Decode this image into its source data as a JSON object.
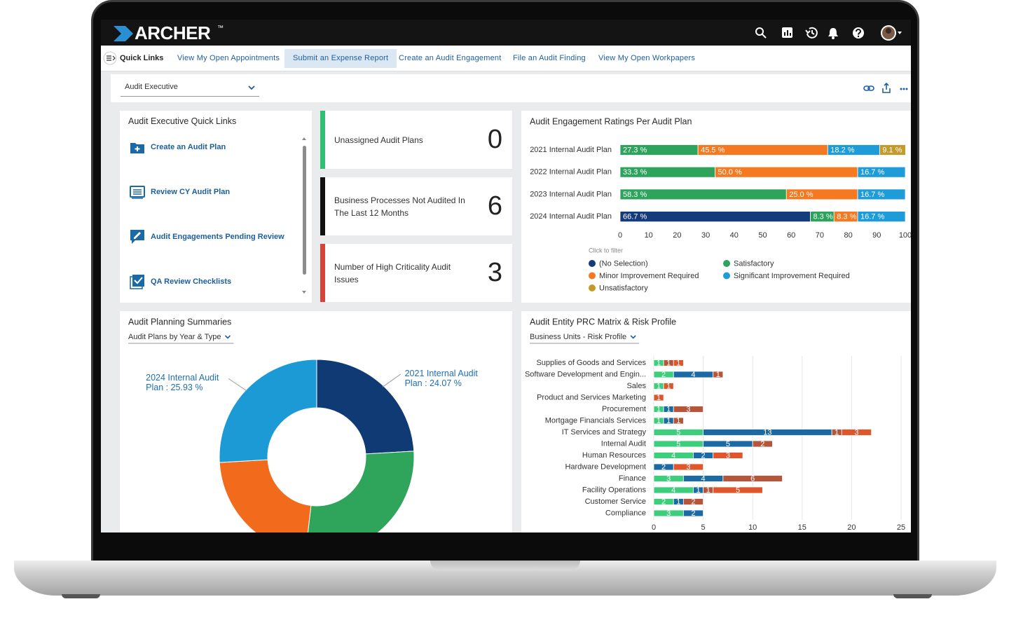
{
  "header": {
    "logo": "ARCHER",
    "trademark": "™"
  },
  "quick_links": {
    "title": "Quick Links",
    "links": [
      "View My Open Appointments",
      "Submit an Expense Report",
      "Create an Audit Engagement",
      "File an Audit Finding",
      "View My Open Workpapers"
    ],
    "active": 1
  },
  "workspace": {
    "selector": "Audit Executive"
  },
  "quick_links_panel": {
    "title": "Audit Executive Quick Links",
    "items": [
      "Create an Audit Plan",
      "Review CY Audit Plan",
      "Audit Engagements Pending Review",
      "QA Review Checklists"
    ]
  },
  "kpis": [
    {
      "label": "Unassigned Audit Plans",
      "value": 0,
      "color": "#2fbf71"
    },
    {
      "label": "Business Processes Not Audited In The Last 12 Months",
      "value": 6,
      "color": "#111111"
    },
    {
      "label": "Number of High Criticality Audit Issues",
      "value": 3,
      "color": "#d9443a"
    }
  ],
  "chart_data": [
    {
      "type": "bar",
      "orientation": "horizontal",
      "stacked": true,
      "title": "Audit Engagement Ratings Per Audit Plan",
      "categories": [
        "2021 Internal Audit Plan",
        "2022 Internal Audit Plan",
        "2023 Internal Audit Plan",
        "2024 Internal Audit Plan"
      ],
      "series": [
        {
          "name": "(No Selection)",
          "color": "#163b7a",
          "values": [
            null,
            null,
            null,
            66.7
          ],
          "value_labels": [
            null,
            null,
            null,
            "66.7 %"
          ]
        },
        {
          "name": "Satisfactory",
          "color": "#2da35b",
          "values": [
            27.3,
            33.3,
            58.3,
            8.3
          ],
          "value_labels": [
            "27.3 %",
            "33.3 %",
            "58.3 %",
            "8.3 %"
          ]
        },
        {
          "name": "Minor Improvement Required",
          "color": "#f47920",
          "values": [
            45.5,
            50.0,
            25.0,
            8.3
          ],
          "value_labels": [
            "45.5 %",
            "50.0 %",
            "25.0 %",
            "8.3 %"
          ]
        },
        {
          "name": "Significant Improvement Required",
          "color": "#1d9cd9",
          "values": [
            18.2,
            16.7,
            16.7,
            16.7
          ],
          "value_labels": [
            "18.2 %",
            "16.7 %",
            "16.7 %",
            "16.7 %"
          ]
        },
        {
          "name": "Unsatisfactory",
          "color": "#c49a2c",
          "values": [
            9.1,
            null,
            null,
            null
          ],
          "value_labels": [
            "9.1 %",
            null,
            null,
            null
          ]
        }
      ],
      "xlim": [
        0,
        100
      ],
      "xticks": [
        0,
        10,
        20,
        30,
        40,
        50,
        60,
        70,
        80,
        90,
        100
      ],
      "grid": false,
      "legend_title": "Click to filter",
      "legend": "bottom"
    },
    {
      "type": "donut",
      "title": "Audit Planning Summaries",
      "view": "Audit Plans by Year & Type",
      "labels": [
        "2021 Internal Audit Plan : 24.07 %",
        null,
        null,
        "2024 Internal Audit Plan : 25.93 %"
      ],
      "values": [
        24.07,
        27.78,
        22.22,
        25.93
      ],
      "colors": [
        "#0f3a73",
        "#2ea55b",
        "#f26b1d",
        "#1c9ad6"
      ]
    },
    {
      "type": "bar",
      "orientation": "horizontal",
      "stacked": true,
      "title": "Audit Entity PRC Matrix & Risk Profile",
      "view": "Business Units - Risk Profile",
      "categories": [
        "Supplies of Goods and Services",
        "Software Development and Engin...",
        "Sales",
        "Product and Services Marketing",
        "Procurement",
        "Mortgage Financials Services",
        "IT Services and Strategy",
        "Internal Audit",
        "Human Resources",
        "Hardware Development",
        "Finance",
        "Facility Operations",
        "Customer Service",
        "Compliance"
      ],
      "series": [
        {
          "color": "#3ccf7b",
          "values": [
            1,
            2,
            1,
            null,
            1,
            1,
            5,
            5,
            4,
            null,
            3,
            4,
            2,
            3
          ]
        },
        {
          "color": "#1b6aa5",
          "values": [
            null,
            4,
            null,
            null,
            1,
            1,
            13,
            5,
            2,
            2,
            4,
            1,
            1,
            2
          ]
        },
        {
          "color": "#b5553a",
          "values": [
            1,
            1,
            null,
            null,
            3,
            1,
            1,
            2,
            null,
            null,
            6,
            1,
            2,
            null
          ]
        },
        {
          "color": "#e1552a",
          "values": [
            1,
            null,
            1,
            1,
            null,
            null,
            3,
            null,
            3,
            3,
            null,
            5,
            null,
            null
          ]
        }
      ],
      "xlim": [
        0,
        25
      ],
      "xticks": [
        0,
        5,
        10,
        15,
        20,
        25
      ],
      "grid": true
    }
  ]
}
